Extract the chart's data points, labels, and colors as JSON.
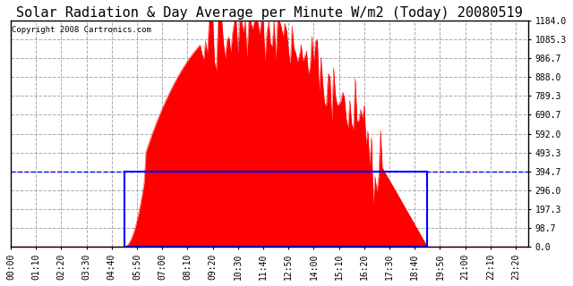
{
  "title": "Solar Radiation & Day Average per Minute W/m2 (Today) 20080519",
  "copyright": "Copyright 2008 Cartronics.com",
  "ymax": 1184.0,
  "yticks": [
    0.0,
    98.7,
    197.3,
    296.0,
    394.7,
    493.3,
    592.0,
    690.7,
    789.3,
    888.0,
    986.7,
    1085.3,
    1184.0
  ],
  "background_color": "#ffffff",
  "plot_bg_color": "#ffffff",
  "grid_color": "#aaaaaa",
  "solar_color": "#ff0000",
  "avg_box_color": "#0000ff",
  "title_fontsize": 11,
  "copyright_fontsize": 6.5,
  "tick_fontsize": 7,
  "day_average": 394.7,
  "sunrise_index": 63,
  "sunset_index": 231,
  "tick_step": 14
}
